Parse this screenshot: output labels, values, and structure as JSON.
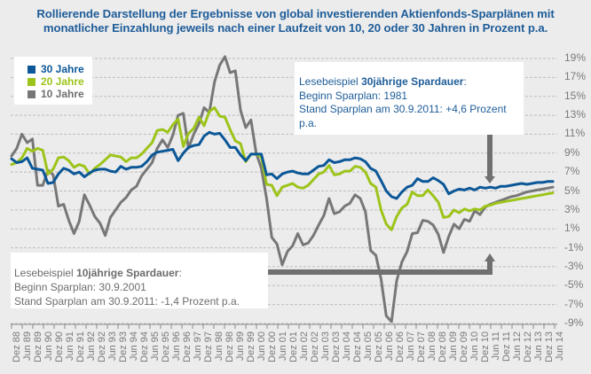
{
  "title": {
    "line1": "Rollierende Darstellung der Ergebnisse  von global investierenden Aktienfonds-Sparplänen  mit",
    "line2": "monatlicher Einzahlung jeweils nach einer Laufzeit von 10, 20 oder 30 Jahren in Prozent p.a."
  },
  "annotations": {
    "a30": {
      "prefix": "Lesebeispiel ",
      "bold": "30jährige Spardauer",
      "suffix": ":",
      "line2": "Beginn Sparplan: 1981",
      "line3": "Stand Sparplan am 30.9.2011: +4,6 Prozent",
      "line4": "p.a."
    },
    "a10": {
      "prefix": "Lesebeispiel ",
      "bold": "10jährige Spardauer",
      "suffix": ":",
      "line2": "Beginn Sparplan: 30.9.2001",
      "line3": "Stand Sparplan am 30.9.2011: -1,4 Prozent p.a."
    }
  },
  "colors": {
    "s30": "#0b5797",
    "s20": "#9dc41a",
    "s10": "#777777",
    "arrow": "#707070",
    "grid": "#bdbdbd",
    "axis": "#8a8a8a"
  },
  "chart_data": {
    "type": "line",
    "title": "Rollierende Darstellung der Ergebnisse von global investierenden Aktienfonds-Sparplänen mit monatlicher Einzahlung jeweils nach einer Laufzeit von 10, 20 oder 30 Jahren in Prozent p.a.",
    "xlabel": "",
    "ylabel": "",
    "ylim": [
      -9,
      19
    ],
    "yticks": [
      19,
      17,
      15,
      13,
      11,
      9,
      7,
      5,
      3,
      1,
      -1,
      -3,
      -5,
      -7,
      -9
    ],
    "ytick_labels": [
      "19%",
      "17%",
      "15%",
      "13%",
      "11%",
      "9%",
      "7%",
      "5%",
      "3%",
      "1%",
      "-1%",
      "-3%",
      "-5%",
      "-7%",
      "-9%"
    ],
    "grid": true,
    "y_axis_side": "right",
    "legend_position": "top-left",
    "x_tick_labels": [
      "Dez 88",
      "Jun 89",
      "Dez 89",
      "Jun 90",
      "Dez 90",
      "Jun 91",
      "Dez 91",
      "Jun 92",
      "Dez 92",
      "Jun 93",
      "Dez 93",
      "Jun 94",
      "Dez 94",
      "Jun 95",
      "Dez 95",
      "Jun 96",
      "Dez 96",
      "Jun 97",
      "Dez 97",
      "Jun 98",
      "Dez 98",
      "Jun 99",
      "Dez 99",
      "Jun 00",
      "Dez 00",
      "Jun 01",
      "Dez 01",
      "Jun 02",
      "Dez 02",
      "Jun 03",
      "Dez 03",
      "Jun 04",
      "Dez 04",
      "Jun 05",
      "Dez 05",
      "Jun 06",
      "Dez 06",
      "Jun 07",
      "Dez 07",
      "Jun 08",
      "Dez 08",
      "Jun 09",
      "Dez 09",
      "Jun 10",
      "Dez 10",
      "Jun 11",
      "Dez 11",
      "Jun 12",
      "Dez 12",
      "Jun 13",
      "Dez 13",
      "Jun 14"
    ],
    "x_resolution": "quarterly (Dez 88 to Dez 14)",
    "series": [
      {
        "name": "30 Jahre",
        "values": [
          8.4,
          8.0,
          8.1,
          8.5,
          7.4,
          7.3,
          7.2,
          5.8,
          5.9,
          6.8,
          7.4,
          7.2,
          6.8,
          7.0,
          6.5,
          6.9,
          7.2,
          7.3,
          7.3,
          7.1,
          7.0,
          7.6,
          7.3,
          7.5,
          7.5,
          7.6,
          8.1,
          8.8,
          9.1,
          9.2,
          9.3,
          9.4,
          8.2,
          9.0,
          9.6,
          9.8,
          9.9,
          10.8,
          11.2,
          11.0,
          11.1,
          10.4,
          9.6,
          9.6,
          8.8,
          8.2,
          8.9,
          8.9,
          8.9,
          6.7,
          6.8,
          6.3,
          6.8,
          7.0,
          7.1,
          6.9,
          6.8,
          6.8,
          7.2,
          7.6,
          7.7,
          8.3,
          8.0,
          8.1,
          8.3,
          8.3,
          8.5,
          8.4,
          8.1,
          7.4,
          7.1,
          6.1,
          5.0,
          4.4,
          4.2,
          4.9,
          5.4,
          5.6,
          6.3,
          6.0,
          6.0,
          6.4,
          6.1,
          5.7,
          4.7,
          5.0,
          5.2,
          5.1,
          5.3,
          5.1,
          5.4,
          5.3,
          5.4,
          5.3,
          5.5,
          5.5,
          5.6,
          5.7,
          5.8,
          5.7,
          5.8,
          5.9,
          5.9,
          6.0,
          6.0
        ]
      },
      {
        "name": "20 Jahre",
        "values": [
          7.8,
          8.0,
          8.5,
          9.5,
          9.2,
          9.5,
          9.3,
          6.8,
          7.3,
          8.5,
          8.6,
          8.2,
          7.5,
          7.8,
          7.6,
          6.8,
          7.4,
          7.8,
          8.3,
          8.8,
          8.7,
          8.6,
          8.1,
          8.5,
          8.5,
          8.9,
          9.5,
          10.1,
          11.4,
          11.5,
          11.2,
          12.0,
          12.6,
          9.7,
          11.1,
          11.6,
          12.8,
          11.9,
          13.4,
          13.8,
          12.9,
          12.8,
          11.5,
          10.3,
          10.0,
          8.1,
          8.9,
          8.9,
          8.6,
          5.7,
          5.6,
          4.5,
          5.4,
          5.6,
          5.8,
          5.4,
          5.3,
          5.6,
          6.2,
          6.8,
          7.0,
          7.7,
          6.7,
          6.8,
          7.1,
          7.1,
          7.6,
          7.5,
          7.0,
          5.8,
          5.4,
          3.0,
          1.5,
          0.9,
          2.3,
          3.2,
          3.6,
          4.9,
          4.5,
          4.5,
          5.1,
          4.5,
          3.8,
          2.2,
          2.3,
          3.0,
          2.7,
          3.1,
          2.9,
          3.1,
          3.0,
          3.4,
          3.5,
          3.7,
          3.8,
          3.9,
          4.0,
          4.1,
          4.2,
          4.3,
          4.4,
          4.5,
          4.6,
          4.7,
          4.8
        ]
      },
      {
        "name": "10 Jahre",
        "values": [
          8.7,
          9.5,
          11.0,
          10.1,
          10.5,
          5.6,
          5.6,
          7.2,
          6.7,
          3.4,
          3.6,
          1.9,
          0.5,
          1.8,
          4.6,
          3.5,
          2.3,
          1.6,
          0.3,
          2.2,
          3.0,
          3.8,
          4.3,
          5.1,
          5.5,
          6.6,
          7.3,
          8.0,
          9.5,
          10.4,
          9.6,
          10.9,
          13.0,
          13.2,
          9.5,
          11.0,
          12.1,
          13.8,
          13.3,
          16.5,
          18.3,
          19.2,
          17.5,
          17.7,
          13.5,
          11.7,
          12.5,
          9.0,
          7.4,
          4.2,
          0.1,
          -0.6,
          -2.8,
          -1.4,
          -0.8,
          0.5,
          -0.7,
          -0.5,
          0.3,
          1.4,
          2.4,
          4.2,
          2.6,
          2.8,
          3.4,
          3.7,
          4.6,
          4.2,
          2.8,
          -1.3,
          -1.8,
          -4.3,
          -8.2,
          -8.8,
          -4.5,
          -2.5,
          -1.4,
          0.5,
          0.6,
          1.9,
          1.8,
          1.4,
          0.4,
          -1.5,
          0.2,
          1.5,
          1.0,
          2.0,
          1.8,
          2.9,
          2.5,
          3.3,
          3.6,
          3.8,
          4.0,
          4.2,
          4.4,
          4.5,
          4.7,
          4.9,
          5.0,
          5.1,
          5.2,
          5.3,
          5.4
        ]
      }
    ]
  }
}
